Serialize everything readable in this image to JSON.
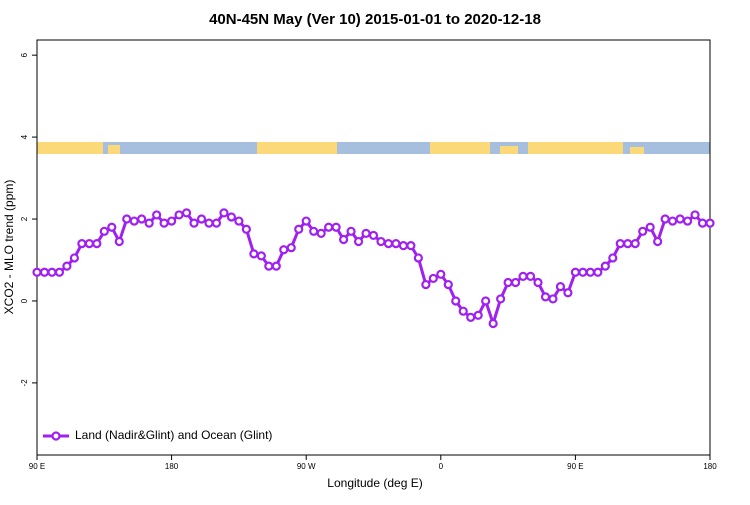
{
  "chart_data": {
    "type": "line",
    "title": "40N-45N May (Ver 10)   2015-01-01 to 2020-12-18",
    "x_label": "Longitude (deg E)",
    "y_label": "XCO2 - MLO trend (ppm)",
    "x": [
      90,
      95,
      100,
      105,
      110,
      115,
      120,
      125,
      130,
      135,
      140,
      145,
      150,
      155,
      160,
      165,
      170,
      175,
      180,
      185,
      190,
      195,
      200,
      205,
      210,
      215,
      220,
      225,
      230,
      235,
      240,
      245,
      250,
      255,
      260,
      265,
      270,
      275,
      280,
      285,
      290,
      295,
      300,
      305,
      310,
      315,
      320,
      325,
      330,
      335,
      340,
      345,
      350,
      355,
      360,
      365,
      370,
      375,
      380,
      385,
      390,
      395,
      400,
      405,
      410,
      415,
      420,
      425,
      430,
      435,
      440,
      445,
      450,
      455,
      460,
      465,
      470,
      475,
      480,
      485,
      490,
      495,
      500,
      505,
      510,
      515,
      520,
      525,
      530,
      535,
      540
    ],
    "series": [
      {
        "name": "Land (Nadir&Glint) and Ocean (Glint)",
        "color": "#a020f0",
        "values": [
          0.7,
          0.7,
          0.7,
          0.7,
          0.85,
          1.05,
          1.4,
          1.4,
          1.4,
          1.7,
          1.8,
          1.45,
          2.0,
          1.95,
          2.0,
          1.9,
          2.1,
          1.9,
          1.95,
          2.1,
          2.15,
          1.9,
          2.0,
          1.9,
          1.9,
          2.15,
          2.05,
          1.95,
          1.75,
          1.15,
          1.1,
          0.85,
          0.85,
          1.25,
          1.3,
          1.75,
          1.95,
          1.7,
          1.65,
          1.8,
          1.8,
          1.5,
          1.7,
          1.45,
          1.65,
          1.6,
          1.45,
          1.4,
          1.4,
          1.35,
          1.35,
          1.05,
          0.4,
          0.55,
          0.65,
          0.4,
          0.0,
          -0.25,
          -0.4,
          -0.35,
          0.0,
          -0.55,
          0.05,
          0.45,
          0.45,
          0.6,
          0.6,
          0.45,
          0.1,
          0.05,
          0.35,
          0.2,
          0.7,
          0.7,
          0.7,
          0.7,
          0.85,
          1.05,
          1.4,
          1.4,
          1.4,
          1.7,
          1.8,
          1.45,
          2.0,
          1.95,
          2.0,
          1.95,
          2.1,
          1.9,
          1.9
        ]
      }
    ],
    "xlim": [
      90,
      540
    ],
    "xticks": [
      {
        "value": 90,
        "label": "90 E"
      },
      {
        "value": 180,
        "label": "180"
      },
      {
        "value": 270,
        "label": "90 W"
      },
      {
        "value": 360,
        "label": "0"
      },
      {
        "value": 450,
        "label": "90 E"
      },
      {
        "value": 540,
        "label": "180"
      }
    ],
    "ylim": [
      -3.76,
      6.37
    ],
    "yticks": [
      -2,
      0,
      2,
      4,
      6
    ],
    "legend": "bottomleft"
  }
}
